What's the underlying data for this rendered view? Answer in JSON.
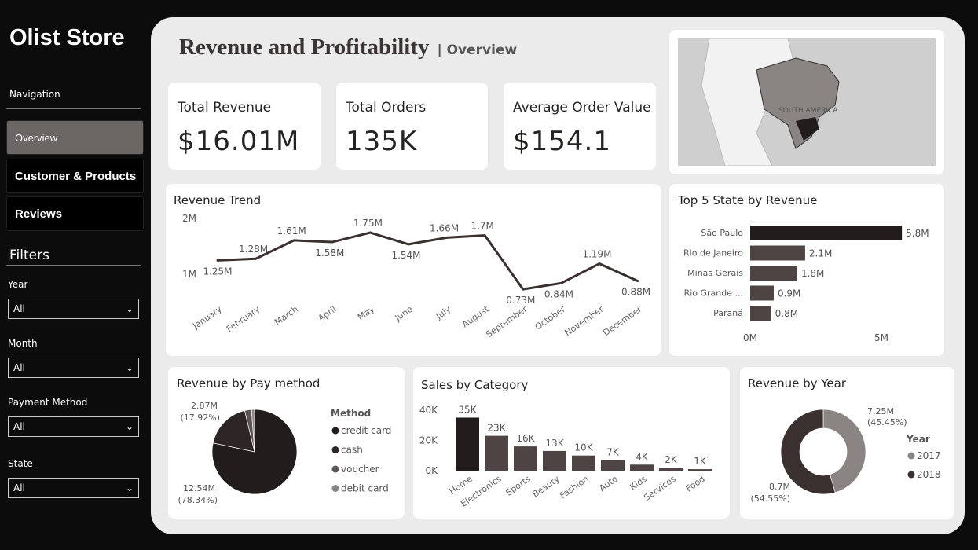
{
  "brand": "Olist Store",
  "sidebar": {
    "nav_heading": "Navigation",
    "items": [
      {
        "label": "Overview",
        "active": true
      },
      {
        "label": "Customer & Products"
      },
      {
        "label": "Reviews"
      }
    ],
    "filters_heading": "Filters",
    "filters": [
      {
        "label": "Year",
        "value": "All"
      },
      {
        "label": "Month",
        "value": "All"
      },
      {
        "label": "Payment Method",
        "value": "All"
      },
      {
        "label": "State",
        "value": "All"
      }
    ]
  },
  "header": {
    "title": "Revenue and Profitability",
    "subtitle": "| Overview"
  },
  "kpis": [
    {
      "label": "Total Revenue",
      "value": "$16.01M"
    },
    {
      "label": "Total Orders",
      "value": "135K"
    },
    {
      "label": "Average Order Value",
      "value": "$154.1"
    }
  ],
  "map": {
    "label": "SOUTH AMERICA"
  },
  "colors": {
    "dark": "#231c1c",
    "mid": "#4e4444",
    "light": "#8a8482"
  },
  "chart_data": [
    {
      "type": "line",
      "title": "Revenue Trend",
      "categories": [
        "January",
        "February",
        "March",
        "April",
        "May",
        "June",
        "July",
        "August",
        "September",
        "October",
        "November",
        "December"
      ],
      "values": [
        1.25,
        1.28,
        1.61,
        1.58,
        1.75,
        1.54,
        1.66,
        1.7,
        0.73,
        0.84,
        1.19,
        0.88
      ],
      "labels": [
        "1.25M",
        "1.28M",
        "1.61M",
        "1.58M",
        "1.75M",
        "1.54M",
        "1.66M",
        "1.7M",
        "0.73M",
        "0.84M",
        "1.19M",
        "0.88M"
      ],
      "yticks": [
        "1M",
        "2M"
      ],
      "unit": "M"
    },
    {
      "type": "bar",
      "title": "Top 5 State by Revenue",
      "orientation": "horizontal",
      "categories": [
        "São Paulo",
        "Rio de Janeiro",
        "Minas Gerais",
        "Rio Grande ...",
        "Paraná"
      ],
      "values": [
        5.8,
        2.1,
        1.8,
        0.9,
        0.8
      ],
      "labels": [
        "5.8M",
        "2.1M",
        "1.8M",
        "0.9M",
        "0.8M"
      ],
      "xticks": [
        "0M",
        "5M"
      ]
    },
    {
      "type": "pie",
      "title": "Revenue by Pay method",
      "legend_title": "Method",
      "categories": [
        "credit card",
        "cash",
        "voucher",
        "debit card"
      ],
      "values": [
        78.34,
        17.92,
        2.6,
        1.14
      ],
      "labels": [
        {
          "value": "12.54M",
          "pct": "(78.34%)"
        },
        {
          "value": "2.87M",
          "pct": "(17.92%)"
        }
      ],
      "colors": [
        "#231c1c",
        "#2e2626",
        "#5a5454",
        "#8a8482"
      ]
    },
    {
      "type": "bar",
      "title": "Sales by Category",
      "categories": [
        "Home",
        "Electronics",
        "Sports",
        "Beauty",
        "Fashion",
        "Auto",
        "Kids",
        "Services",
        "Food"
      ],
      "values": [
        35,
        23,
        16,
        13,
        10,
        7,
        4,
        2,
        1
      ],
      "labels": [
        "35K",
        "23K",
        "16K",
        "13K",
        "10K",
        "7K",
        "4K",
        "2K",
        "1K"
      ],
      "yticks": [
        "0K",
        "20K",
        "40K"
      ],
      "ylim": [
        0,
        40
      ]
    },
    {
      "type": "pie",
      "donut": true,
      "title": "Revenue by Year",
      "legend_title": "Year",
      "categories": [
        "2017",
        "2018"
      ],
      "values": [
        45.45,
        54.55
      ],
      "labels": [
        {
          "value": "7.25M",
          "pct": "(45.45%)"
        },
        {
          "value": "8.7M",
          "pct": "(54.55%)"
        }
      ],
      "colors": [
        "#8a8482",
        "#3a3030"
      ]
    }
  ]
}
